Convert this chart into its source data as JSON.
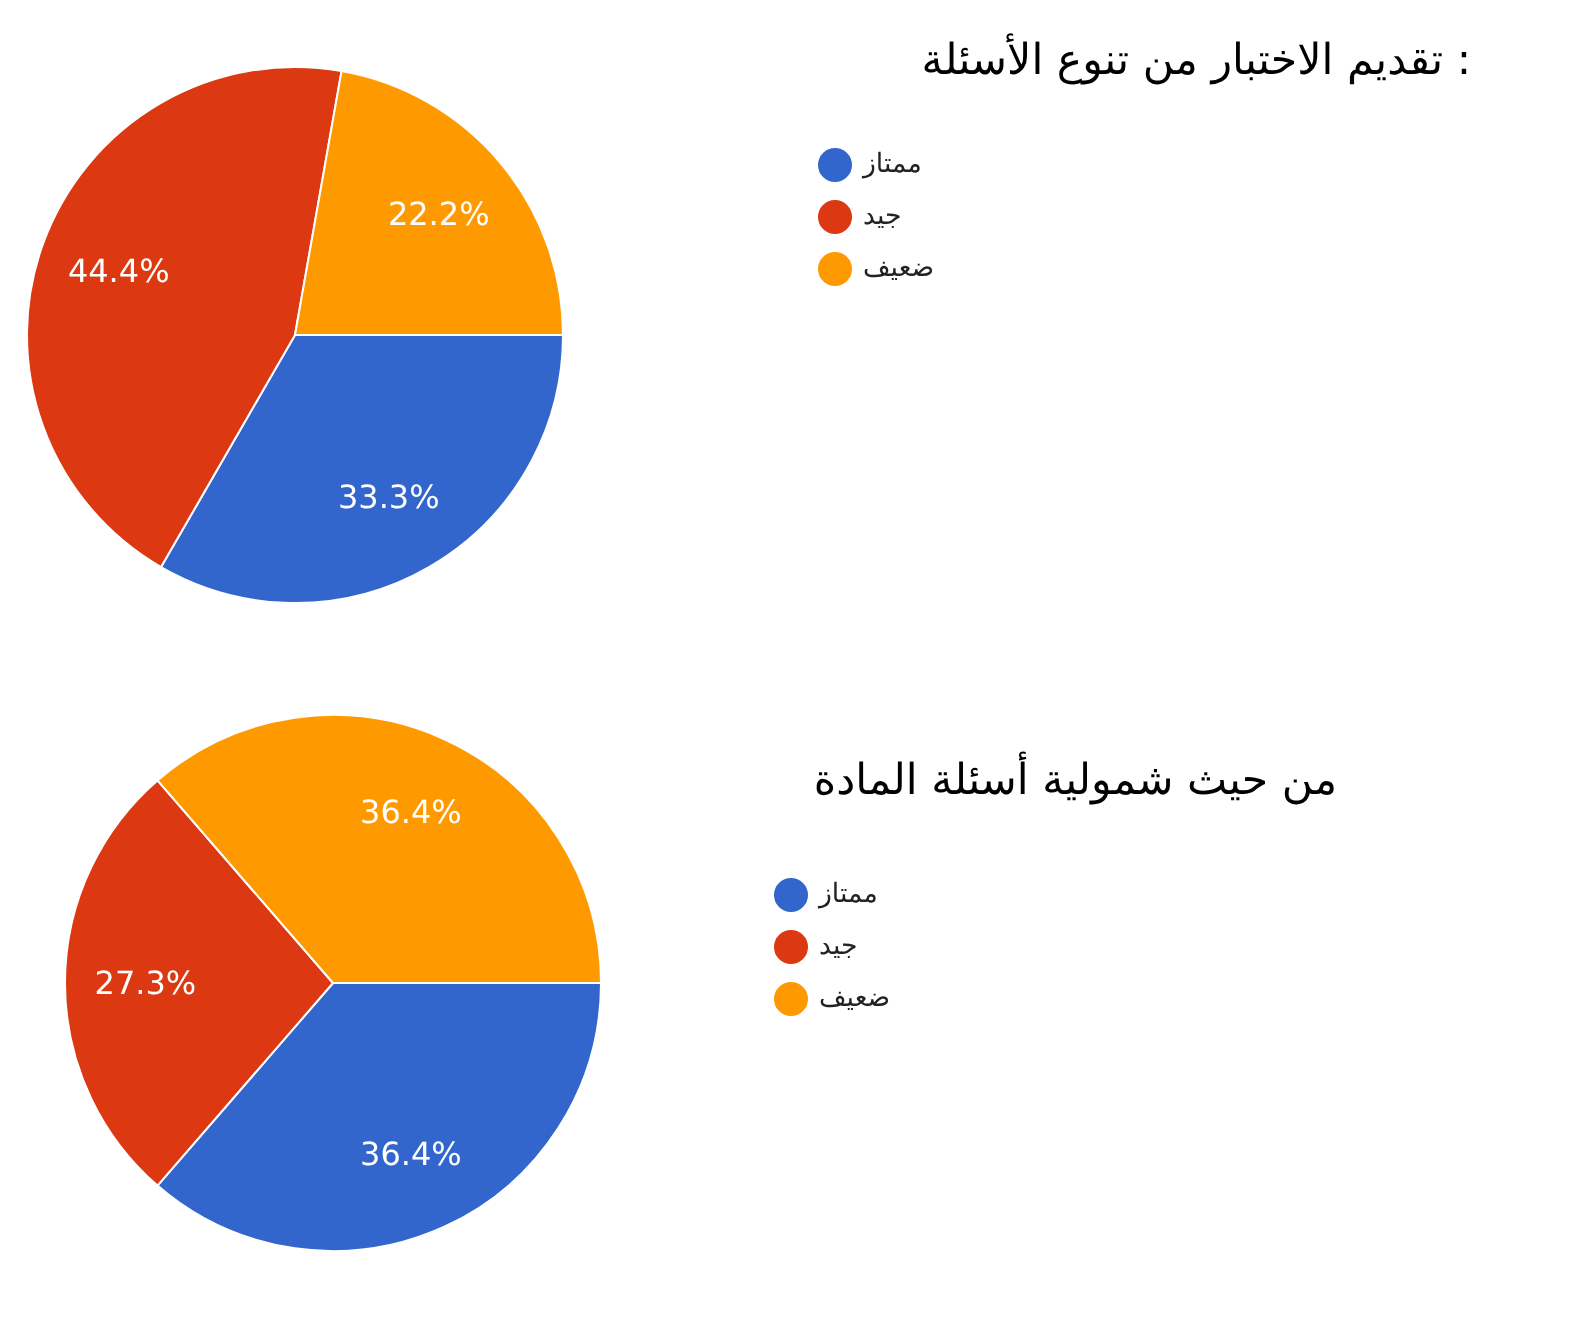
{
  "chart_data": [
    {
      "type": "pie",
      "title": "تقديم الاختبار من تنوع الأسئلة :",
      "categories": [
        "ممتاز",
        "جيد",
        "ضعيف"
      ],
      "values": [
        33.3,
        44.4,
        22.2
      ],
      "value_labels": [
        "33.3%",
        "44.4%",
        "22.2%"
      ],
      "colors": [
        "#3366cc",
        "#dc3912",
        "#ff9900"
      ],
      "legend": "right"
    },
    {
      "type": "pie",
      "title": "من حيث شمولية أسئلة المادة",
      "categories": [
        "ممتاز",
        "جيد",
        "ضعيف"
      ],
      "values": [
        36.4,
        27.3,
        36.4
      ],
      "value_labels": [
        "36.4%",
        "27.3%",
        "36.4%"
      ],
      "colors": [
        "#3366cc",
        "#dc3912",
        "#ff9900"
      ],
      "legend": "right"
    }
  ]
}
